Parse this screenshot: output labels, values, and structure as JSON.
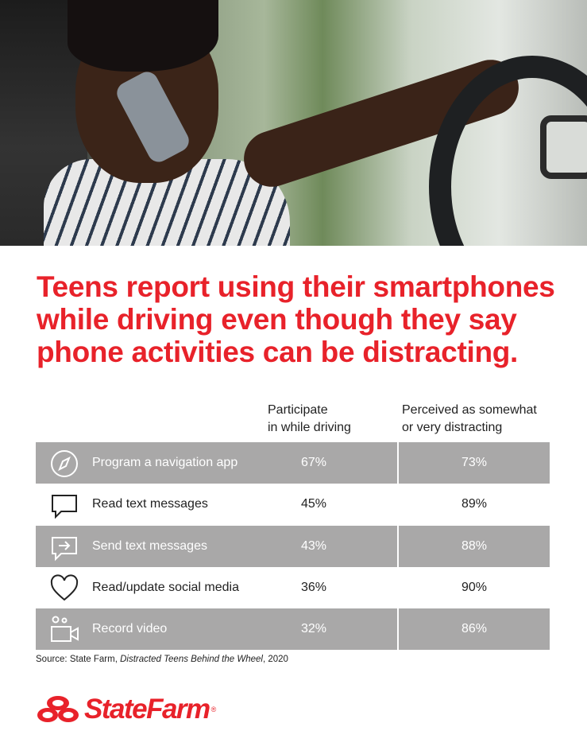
{
  "title": "Teens report using their smartphones while driving even though they say phone activities can be distracting.",
  "chart_data": {
    "type": "table",
    "columns": [
      "Participate in while driving",
      "Perceived as somewhat or very distracting"
    ],
    "rows": [
      {
        "label": "Program a navigation app",
        "icon": "compass-icon",
        "participate": "67%",
        "distracting": "73%"
      },
      {
        "label": "Read text messages",
        "icon": "speech-bubble-icon",
        "participate": "45%",
        "distracting": "89%"
      },
      {
        "label": "Send text messages",
        "icon": "send-message-icon",
        "participate": "43%",
        "distracting": "88%"
      },
      {
        "label": "Read/update social media",
        "icon": "heart-icon",
        "participate": "36%",
        "distracting": "90%"
      },
      {
        "label": "Record video",
        "icon": "video-camera-icon",
        "participate": "32%",
        "distracting": "86%"
      }
    ]
  },
  "header": {
    "col1_line1": "Participate",
    "col1_line2": "in while driving",
    "col2_line1": "Perceived as somewhat",
    "col2_line2": "or very distracting"
  },
  "source": {
    "prefix": "Source: State Farm, ",
    "title": "Distracted Teens Behind the Wheel",
    "suffix": ", 2020"
  },
  "logo": {
    "text": "StateFarm",
    "mark": "®"
  },
  "colors": {
    "brand_red": "#e8222a",
    "row_shade": "#a9a8a8"
  }
}
